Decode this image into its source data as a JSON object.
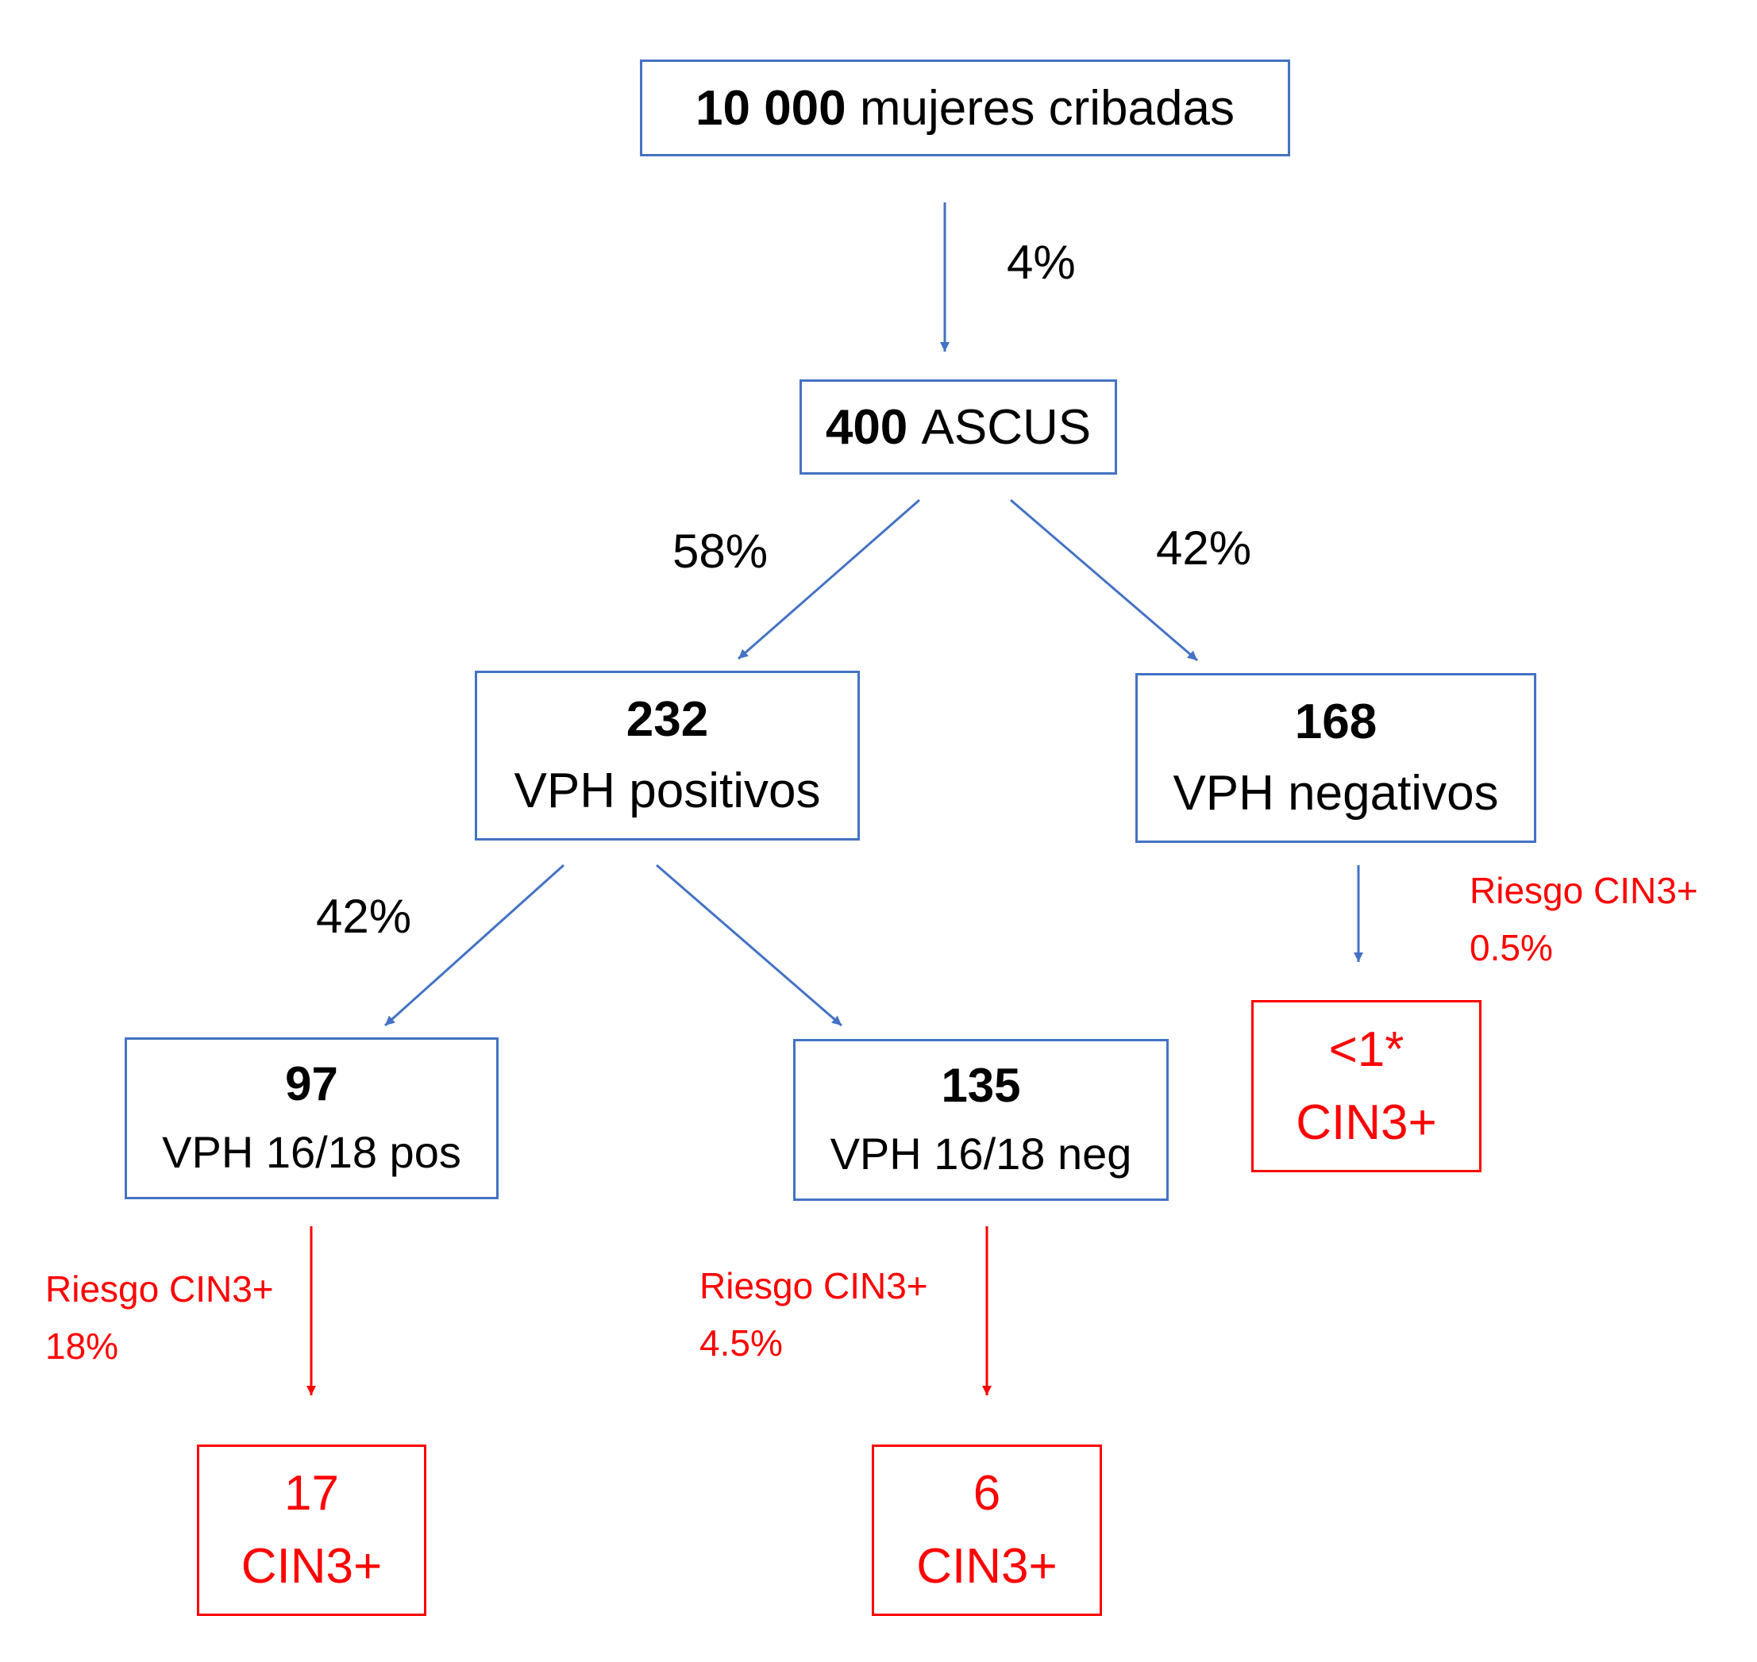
{
  "colors": {
    "blue": "#4472C4",
    "red": "#FF0000"
  },
  "nodes": {
    "root": {
      "number": "10 000",
      "text": "mujeres cribadas"
    },
    "ascus": {
      "number": "400",
      "text": "ASCUS"
    },
    "hpvpos": {
      "number": "232",
      "text": "VPH positivos"
    },
    "hpvneg": {
      "number": "168",
      "text": "VPH negativos"
    },
    "pos1618": {
      "number": "97",
      "text": "VPH 16/18 pos"
    },
    "neg1618": {
      "number": "135",
      "text": "VPH 16/18 neg"
    },
    "out17": {
      "number": "17",
      "text": "CIN3+"
    },
    "out6": {
      "number": "6",
      "text": "CIN3+"
    },
    "outlt1": {
      "number": "<1*",
      "text": "CIN3+"
    }
  },
  "edges": {
    "root_ascus": "4%",
    "ascus_pos": "58%",
    "ascus_neg": "42%",
    "pos_1618pos": "42%"
  },
  "risks": {
    "pos1618": {
      "label": "Riesgo CIN3+",
      "value": "18%"
    },
    "neg1618": {
      "label": "Riesgo CIN3+",
      "value": "4.5%"
    },
    "hpvneg": {
      "label": "Riesgo CIN3+",
      "value": "0.5%"
    }
  }
}
